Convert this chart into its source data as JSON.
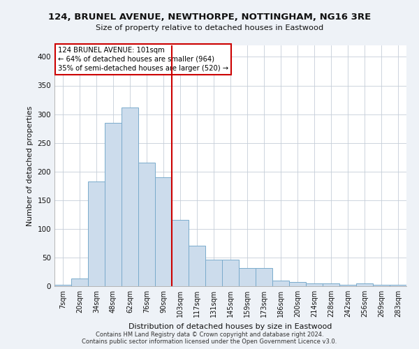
{
  "title": "124, BRUNEL AVENUE, NEWTHORPE, NOTTINGHAM, NG16 3RE",
  "subtitle": "Size of property relative to detached houses in Eastwood",
  "xlabel": "Distribution of detached houses by size in Eastwood",
  "ylabel": "Number of detached properties",
  "footer_line1": "Contains HM Land Registry data © Crown copyright and database right 2024.",
  "footer_line2": "Contains public sector information licensed under the Open Government Licence v3.0.",
  "bins": [
    "7sqm",
    "20sqm",
    "34sqm",
    "48sqm",
    "62sqm",
    "76sqm",
    "90sqm",
    "103sqm",
    "117sqm",
    "131sqm",
    "145sqm",
    "159sqm",
    "173sqm",
    "186sqm",
    "200sqm",
    "214sqm",
    "228sqm",
    "242sqm",
    "256sqm",
    "269sqm",
    "283sqm"
  ],
  "values": [
    2,
    14,
    183,
    285,
    312,
    216,
    190,
    116,
    71,
    46,
    46,
    32,
    32,
    10,
    7,
    5,
    5,
    2,
    5,
    2,
    2
  ],
  "bar_color": "#ccdcec",
  "bar_edge_color": "#7aabcc",
  "marker_label": "124 BRUNEL AVENUE: 101sqm",
  "annotation_line1": "← 64% of detached houses are smaller (964)",
  "annotation_line2": "35% of semi-detached houses are larger (520) →",
  "marker_color": "#cc0000",
  "annotation_box_color": "#cc0000",
  "ylim": [
    0,
    420
  ],
  "yticks": [
    0,
    50,
    100,
    150,
    200,
    250,
    300,
    350,
    400
  ],
  "background_color": "#eef2f7",
  "plot_bg_color": "#ffffff",
  "grid_color": "#c5cdd8"
}
